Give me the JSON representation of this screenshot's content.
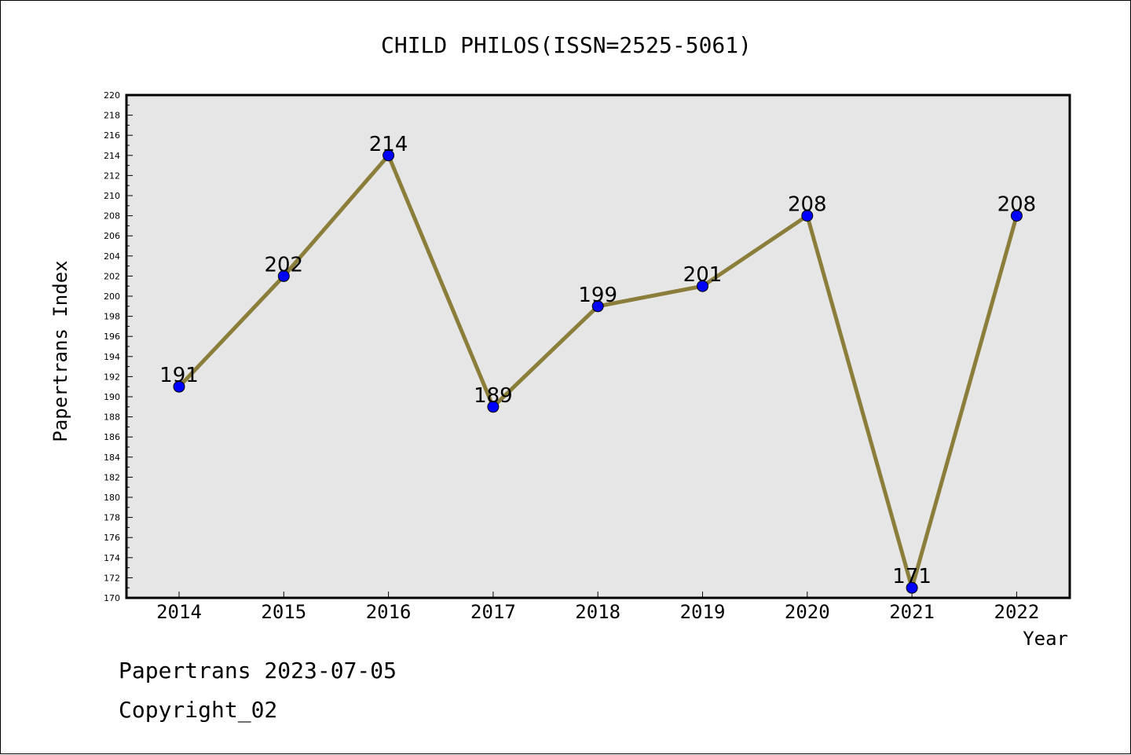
{
  "chart_data": {
    "type": "line",
    "title": "CHILD PHILOS(ISSN=2525-5061)",
    "xlabel": "Year",
    "ylabel": "Papertrans Index",
    "categories": [
      "2014",
      "2015",
      "2016",
      "2017",
      "2018",
      "2019",
      "2020",
      "2021",
      "2022"
    ],
    "series": [
      {
        "values": [
          191,
          202,
          214,
          189,
          199,
          201,
          208,
          171,
          208
        ]
      }
    ],
    "data_labels": [
      "191",
      "202",
      "214",
      "189",
      "199",
      "201",
      "208",
      "171",
      "208"
    ],
    "ylim": [
      170,
      220
    ],
    "y_ticks": [
      "170",
      "172",
      "174",
      "176",
      "178",
      "180",
      "182",
      "184",
      "186",
      "188",
      "190",
      "192",
      "194",
      "196",
      "198",
      "200",
      "202",
      "204",
      "206",
      "208",
      "210",
      "212",
      "214",
      "216",
      "218",
      "220"
    ],
    "grid": false,
    "legend": "none",
    "colors": {
      "line": "#8B7D3A",
      "marker": "#0000FF",
      "plot_background": "#E6E6E6",
      "page_background": "#FFFFFF",
      "text": "#000000"
    }
  },
  "footer": {
    "date_line": "Papertrans 2023-07-05",
    "copyright_line": "Copyright_02"
  }
}
